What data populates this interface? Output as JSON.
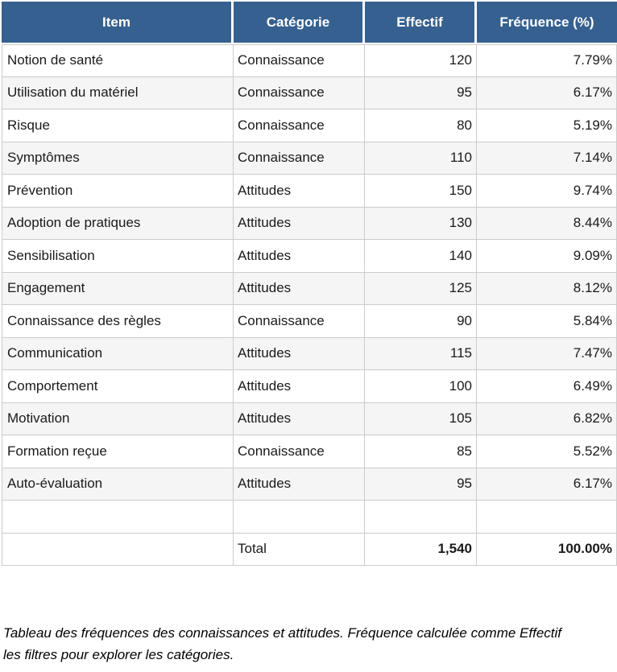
{
  "colors": {
    "header_bg": "#36608F",
    "header_text": "#FFFFFF",
    "stripe_bg": "#F5F5F5",
    "border_color": "#CBCBCB",
    "text_color": "#1A1A1A"
  },
  "table": {
    "columns": [
      {
        "label": "Item",
        "align": "left"
      },
      {
        "label": "Catégorie",
        "align": "left"
      },
      {
        "label": "Effectif",
        "align": "right"
      },
      {
        "label": "Fréquence (%)",
        "align": "right"
      }
    ],
    "rows": [
      {
        "item": "Notion de santé",
        "categorie": "Connaissance",
        "effectif": "120",
        "frequence": "7.79%"
      },
      {
        "item": "Utilisation du matériel",
        "categorie": "Connaissance",
        "effectif": "95",
        "frequence": "6.17%"
      },
      {
        "item": "Risque",
        "categorie": "Connaissance",
        "effectif": "80",
        "frequence": "5.19%"
      },
      {
        "item": "Symptômes",
        "categorie": "Connaissance",
        "effectif": "110",
        "frequence": "7.14%"
      },
      {
        "item": "Prévention",
        "categorie": "Attitudes",
        "effectif": "150",
        "frequence": "9.74%"
      },
      {
        "item": "Adoption de pratiques",
        "categorie": "Attitudes",
        "effectif": "130",
        "frequence": "8.44%"
      },
      {
        "item": "Sensibilisation",
        "categorie": "Attitudes",
        "effectif": "140",
        "frequence": "9.09%"
      },
      {
        "item": "Engagement",
        "categorie": "Attitudes",
        "effectif": "125",
        "frequence": "8.12%"
      },
      {
        "item": "Connaissance des règles",
        "categorie": "Connaissance",
        "effectif": "90",
        "frequence": "5.84%"
      },
      {
        "item": "Communication",
        "categorie": "Attitudes",
        "effectif": "115",
        "frequence": "7.47%"
      },
      {
        "item": "Comportement",
        "categorie": "Attitudes",
        "effectif": "100",
        "frequence": "6.49%"
      },
      {
        "item": "Motivation",
        "categorie": "Attitudes",
        "effectif": "105",
        "frequence": "6.82%"
      },
      {
        "item": "Formation reçue",
        "categorie": "Connaissance",
        "effectif": "85",
        "frequence": "5.52%"
      },
      {
        "item": "Auto-évaluation",
        "categorie": "Attitudes",
        "effectif": "95",
        "frequence": "6.17%"
      }
    ],
    "total": {
      "label": "Total",
      "effectif": "1,540",
      "frequence": "100.00%"
    }
  },
  "caption": {
    "line1": "Tableau des fréquences des connaissances et attitudes. Fréquence calculée comme Effectif",
    "line2": "les filtres pour explorer les catégories."
  }
}
